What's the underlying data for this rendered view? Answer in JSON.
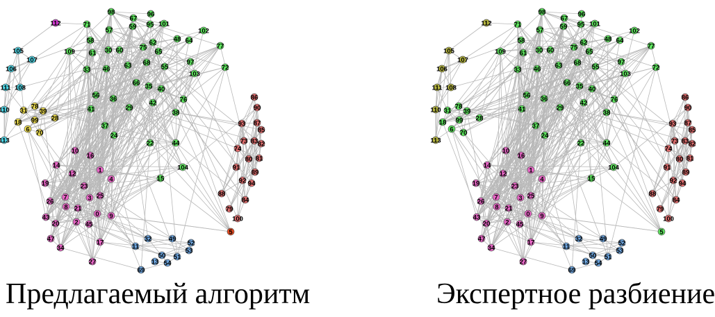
{
  "panels": [
    {
      "caption": "Предлагаемый алгоритм",
      "graph": {
        "node_colors": {
          "green": "#5ee65e",
          "pink": "#e866c6",
          "red": "#e06e6e",
          "blue": "#6fa8e3",
          "cyan": "#4fd6e6",
          "yellow": "#f0e050",
          "magenta": "#d23ad2",
          "orange": "#e84a1e"
        },
        "nodes": [
          {
            "id": "98",
            "color": "green"
          },
          {
            "id": "96",
            "color": "green"
          },
          {
            "id": "67",
            "color": "green"
          },
          {
            "id": "71",
            "color": "green"
          },
          {
            "id": "57",
            "color": "green"
          },
          {
            "id": "59",
            "color": "green"
          },
          {
            "id": "95",
            "color": "green"
          },
          {
            "id": "101",
            "color": "green"
          },
          {
            "id": "102",
            "color": "green"
          },
          {
            "id": "58",
            "color": "green"
          },
          {
            "id": "62",
            "color": "green"
          },
          {
            "id": "48",
            "color": "green"
          },
          {
            "id": "64",
            "color": "green"
          },
          {
            "id": "77",
            "color": "green"
          },
          {
            "id": "109",
            "color": "green"
          },
          {
            "id": "61",
            "color": "green"
          },
          {
            "id": "30",
            "color": "green"
          },
          {
            "id": "60",
            "color": "green"
          },
          {
            "id": "75",
            "color": "green"
          },
          {
            "id": "65",
            "color": "green"
          },
          {
            "id": "97",
            "color": "green"
          },
          {
            "id": "72",
            "color": "green"
          },
          {
            "id": "33",
            "color": "green"
          },
          {
            "id": "46",
            "color": "green"
          },
          {
            "id": "63",
            "color": "green"
          },
          {
            "id": "68",
            "color": "green"
          },
          {
            "id": "55",
            "color": "green"
          },
          {
            "id": "103",
            "color": "green"
          },
          {
            "id": "66",
            "color": "green"
          },
          {
            "id": "35",
            "color": "green"
          },
          {
            "id": "40",
            "color": "green"
          },
          {
            "id": "56",
            "color": "green"
          },
          {
            "id": "36",
            "color": "green"
          },
          {
            "id": "42",
            "color": "green"
          },
          {
            "id": "76",
            "color": "green"
          },
          {
            "id": "41",
            "color": "green"
          },
          {
            "id": "29",
            "color": "green"
          },
          {
            "id": "38",
            "color": "green"
          },
          {
            "id": "37",
            "color": "green"
          },
          {
            "id": "24",
            "color": "green"
          },
          {
            "id": "22",
            "color": "green"
          },
          {
            "id": "44",
            "color": "green"
          },
          {
            "id": "104",
            "color": "green"
          },
          {
            "id": "15",
            "color": "green"
          },
          {
            "id": "112",
            "color": "magenta"
          },
          {
            "id": "105",
            "color": "cyan"
          },
          {
            "id": "107",
            "color": "cyan"
          },
          {
            "id": "106",
            "color": "cyan"
          },
          {
            "id": "111",
            "color": "cyan"
          },
          {
            "id": "108",
            "color": "cyan"
          },
          {
            "id": "110",
            "color": "cyan"
          },
          {
            "id": "113",
            "color": "cyan"
          },
          {
            "id": "31",
            "color": "yellow"
          },
          {
            "id": "78",
            "color": "yellow"
          },
          {
            "id": "39",
            "color": "yellow"
          },
          {
            "id": "28",
            "color": "yellow"
          },
          {
            "id": "18",
            "color": "yellow"
          },
          {
            "id": "99",
            "color": "yellow"
          },
          {
            "id": "6",
            "color": "yellow"
          },
          {
            "id": "70",
            "color": "yellow"
          },
          {
            "id": "10",
            "color": "pink"
          },
          {
            "id": "16",
            "color": "pink"
          },
          {
            "id": "14",
            "color": "pink"
          },
          {
            "id": "12",
            "color": "pink"
          },
          {
            "id": "1",
            "color": "pink"
          },
          {
            "id": "4",
            "color": "pink"
          },
          {
            "id": "23",
            "color": "pink"
          },
          {
            "id": "19",
            "color": "pink"
          },
          {
            "id": "7",
            "color": "pink"
          },
          {
            "id": "3",
            "color": "pink"
          },
          {
            "id": "25",
            "color": "pink"
          },
          {
            "id": "26",
            "color": "pink"
          },
          {
            "id": "8",
            "color": "pink"
          },
          {
            "id": "21",
            "color": "pink"
          },
          {
            "id": "43",
            "color": "pink"
          },
          {
            "id": "20",
            "color": "pink"
          },
          {
            "id": "2",
            "color": "pink"
          },
          {
            "id": "0",
            "color": "pink"
          },
          {
            "id": "9",
            "color": "pink"
          },
          {
            "id": "45",
            "color": "pink"
          },
          {
            "id": "47",
            "color": "pink"
          },
          {
            "id": "34",
            "color": "pink"
          },
          {
            "id": "17",
            "color": "pink"
          },
          {
            "id": "27",
            "color": "pink"
          },
          {
            "id": "86",
            "color": "red"
          },
          {
            "id": "90",
            "color": "red"
          },
          {
            "id": "93",
            "color": "red"
          },
          {
            "id": "87",
            "color": "red"
          },
          {
            "id": "85",
            "color": "red"
          },
          {
            "id": "73",
            "color": "red"
          },
          {
            "id": "83",
            "color": "red"
          },
          {
            "id": "82",
            "color": "red"
          },
          {
            "id": "74",
            "color": "red"
          },
          {
            "id": "80",
            "color": "red"
          },
          {
            "id": "81",
            "color": "red"
          },
          {
            "id": "91",
            "color": "red"
          },
          {
            "id": "89",
            "color": "red"
          },
          {
            "id": "92",
            "color": "red"
          },
          {
            "id": "94",
            "color": "red"
          },
          {
            "id": "88",
            "color": "red"
          },
          {
            "id": "84",
            "color": "red"
          },
          {
            "id": "79",
            "color": "red"
          },
          {
            "id": "100",
            "color": "red"
          },
          {
            "id": "5",
            "color": "orange"
          },
          {
            "id": "11",
            "color": "blue"
          },
          {
            "id": "32",
            "color": "blue"
          },
          {
            "id": "49",
            "color": "blue"
          },
          {
            "id": "52",
            "color": "blue"
          },
          {
            "id": "50",
            "color": "blue"
          },
          {
            "id": "53",
            "color": "blue"
          },
          {
            "id": "51",
            "color": "blue"
          },
          {
            "id": "13",
            "color": "blue"
          },
          {
            "id": "54",
            "color": "blue"
          },
          {
            "id": "69",
            "color": "blue"
          }
        ]
      }
    },
    {
      "caption": "Экспертное разбиение",
      "graph": {
        "node_colors": {
          "green": "#5ee65e",
          "pink": "#e866c6",
          "red": "#e06e6e",
          "blue": "#6fa8e3",
          "olive": "#b6b640"
        },
        "nodes": [
          {
            "id": "98",
            "color": "green"
          },
          {
            "id": "96",
            "color": "green"
          },
          {
            "id": "67",
            "color": "green"
          },
          {
            "id": "71",
            "color": "green"
          },
          {
            "id": "57",
            "color": "green"
          },
          {
            "id": "59",
            "color": "green"
          },
          {
            "id": "95",
            "color": "green"
          },
          {
            "id": "101",
            "color": "green"
          },
          {
            "id": "102",
            "color": "green"
          },
          {
            "id": "58",
            "color": "green"
          },
          {
            "id": "62",
            "color": "green"
          },
          {
            "id": "48",
            "color": "green"
          },
          {
            "id": "64",
            "color": "green"
          },
          {
            "id": "77",
            "color": "green"
          },
          {
            "id": "109",
            "color": "green"
          },
          {
            "id": "61",
            "color": "green"
          },
          {
            "id": "30",
            "color": "green"
          },
          {
            "id": "60",
            "color": "green"
          },
          {
            "id": "75",
            "color": "green"
          },
          {
            "id": "65",
            "color": "green"
          },
          {
            "id": "97",
            "color": "green"
          },
          {
            "id": "72",
            "color": "green"
          },
          {
            "id": "33",
            "color": "green"
          },
          {
            "id": "46",
            "color": "green"
          },
          {
            "id": "63",
            "color": "green"
          },
          {
            "id": "68",
            "color": "green"
          },
          {
            "id": "55",
            "color": "green"
          },
          {
            "id": "103",
            "color": "green"
          },
          {
            "id": "66",
            "color": "green"
          },
          {
            "id": "35",
            "color": "green"
          },
          {
            "id": "40",
            "color": "green"
          },
          {
            "id": "56",
            "color": "green"
          },
          {
            "id": "36",
            "color": "green"
          },
          {
            "id": "42",
            "color": "green"
          },
          {
            "id": "76",
            "color": "green"
          },
          {
            "id": "41",
            "color": "green"
          },
          {
            "id": "29",
            "color": "green"
          },
          {
            "id": "38",
            "color": "green"
          },
          {
            "id": "37",
            "color": "green"
          },
          {
            "id": "24",
            "color": "green"
          },
          {
            "id": "22",
            "color": "green"
          },
          {
            "id": "44",
            "color": "green"
          },
          {
            "id": "104",
            "color": "green"
          },
          {
            "id": "15",
            "color": "green"
          },
          {
            "id": "112",
            "color": "olive"
          },
          {
            "id": "105",
            "color": "olive"
          },
          {
            "id": "107",
            "color": "olive"
          },
          {
            "id": "106",
            "color": "olive"
          },
          {
            "id": "111",
            "color": "olive"
          },
          {
            "id": "108",
            "color": "olive"
          },
          {
            "id": "110",
            "color": "olive"
          },
          {
            "id": "113",
            "color": "olive"
          },
          {
            "id": "31",
            "color": "green"
          },
          {
            "id": "78",
            "color": "green"
          },
          {
            "id": "39",
            "color": "green"
          },
          {
            "id": "28",
            "color": "green"
          },
          {
            "id": "18",
            "color": "green"
          },
          {
            "id": "99",
            "color": "green"
          },
          {
            "id": "6",
            "color": "green"
          },
          {
            "id": "70",
            "color": "green"
          },
          {
            "id": "10",
            "color": "pink"
          },
          {
            "id": "16",
            "color": "pink"
          },
          {
            "id": "14",
            "color": "pink"
          },
          {
            "id": "12",
            "color": "pink"
          },
          {
            "id": "1",
            "color": "pink"
          },
          {
            "id": "4",
            "color": "pink"
          },
          {
            "id": "23",
            "color": "pink"
          },
          {
            "id": "19",
            "color": "pink"
          },
          {
            "id": "7",
            "color": "pink"
          },
          {
            "id": "3",
            "color": "pink"
          },
          {
            "id": "25",
            "color": "pink"
          },
          {
            "id": "26",
            "color": "pink"
          },
          {
            "id": "8",
            "color": "pink"
          },
          {
            "id": "21",
            "color": "pink"
          },
          {
            "id": "43",
            "color": "pink"
          },
          {
            "id": "20",
            "color": "pink"
          },
          {
            "id": "2",
            "color": "pink"
          },
          {
            "id": "0",
            "color": "pink"
          },
          {
            "id": "9",
            "color": "pink"
          },
          {
            "id": "45",
            "color": "pink"
          },
          {
            "id": "47",
            "color": "pink"
          },
          {
            "id": "34",
            "color": "pink"
          },
          {
            "id": "17",
            "color": "pink"
          },
          {
            "id": "27",
            "color": "pink"
          },
          {
            "id": "86",
            "color": "red"
          },
          {
            "id": "90",
            "color": "red"
          },
          {
            "id": "93",
            "color": "red"
          },
          {
            "id": "87",
            "color": "red"
          },
          {
            "id": "85",
            "color": "red"
          },
          {
            "id": "73",
            "color": "red"
          },
          {
            "id": "83",
            "color": "red"
          },
          {
            "id": "82",
            "color": "red"
          },
          {
            "id": "74",
            "color": "red"
          },
          {
            "id": "80",
            "color": "red"
          },
          {
            "id": "81",
            "color": "red"
          },
          {
            "id": "91",
            "color": "red"
          },
          {
            "id": "89",
            "color": "red"
          },
          {
            "id": "92",
            "color": "red"
          },
          {
            "id": "94",
            "color": "red"
          },
          {
            "id": "88",
            "color": "red"
          },
          {
            "id": "84",
            "color": "red"
          },
          {
            "id": "79",
            "color": "red"
          },
          {
            "id": "100",
            "color": "red"
          },
          {
            "id": "5",
            "color": "green"
          },
          {
            "id": "11",
            "color": "blue"
          },
          {
            "id": "32",
            "color": "blue"
          },
          {
            "id": "49",
            "color": "blue"
          },
          {
            "id": "52",
            "color": "blue"
          },
          {
            "id": "50",
            "color": "blue"
          },
          {
            "id": "53",
            "color": "blue"
          },
          {
            "id": "51",
            "color": "blue"
          },
          {
            "id": "13",
            "color": "blue"
          },
          {
            "id": "54",
            "color": "blue"
          },
          {
            "id": "69",
            "color": "blue"
          }
        ]
      }
    }
  ]
}
